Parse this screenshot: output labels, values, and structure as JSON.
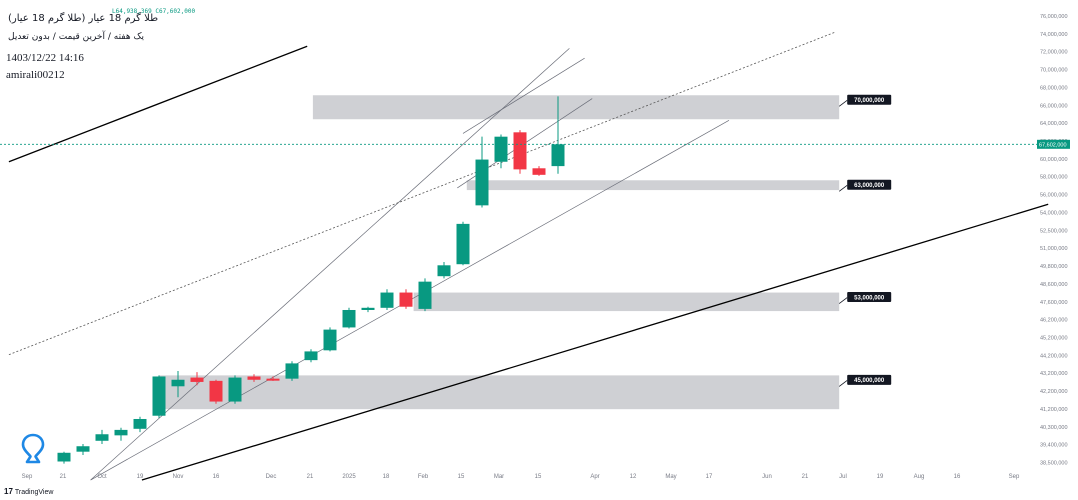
{
  "header": {
    "title": "طلا گرم 18 عیار (طلا گرم 18 عیار)",
    "ohlc": "L64,938,369 C67,602,000",
    "subtitle": "یک هفته / آخرین قیمت / بدون تعدیل",
    "datetime": "1403/12/22 14:16",
    "author": "amirali00212"
  },
  "brand": {
    "mark": "17",
    "name": "TradingView"
  },
  "icons": {
    "pin": "map-pin-icon",
    "brand": "tradingview-logo-icon"
  },
  "colors": {
    "up": "#089981",
    "down": "#f23645",
    "zone": "#c7c8cc",
    "trendline": "#000000",
    "dotted_line": "#555555",
    "last_price": "#089981",
    "axis_text": "#787b86"
  },
  "chart_data": {
    "type": "candlestick",
    "title": "طلا گرم 18 عیار (طلا گرم 18 عیار)",
    "timeframe": "1W",
    "x_tick_labels": [
      "Sep",
      "21",
      "Oct",
      "19",
      "Nov",
      "16",
      "Dec",
      "21",
      "2025",
      "18",
      "Feb",
      "15",
      "Mar",
      "15",
      "Apr",
      "12",
      "May",
      "17",
      "Jun",
      "21",
      "Jul",
      "19",
      "Aug",
      "16",
      "Sep"
    ],
    "y_tick_labels": [
      "76,000,000",
      "74,000,000",
      "72,000,000",
      "70,000,000",
      "68,000,000",
      "66,000,000",
      "64,000,000",
      "62,000,000",
      "60,000,000",
      "58,000,000",
      "56,000,000",
      "54,000,000",
      "52,500,000",
      "51,000,000",
      "49,800,000",
      "48,600,000",
      "47,600,000",
      "46,200,000",
      "45,200,000",
      "44,200,000",
      "43,200,000",
      "42,200,000",
      "41,200,000",
      "40,300,000",
      "39,400,000",
      "38,500,000"
    ],
    "candles": [
      {
        "o": 38.5,
        "h": 39.4,
        "l": 38.3,
        "c": 39.3
      },
      {
        "o": 39.4,
        "h": 40.1,
        "l": 39.1,
        "c": 39.9
      },
      {
        "o": 40.4,
        "h": 41.4,
        "l": 40.1,
        "c": 41.0
      },
      {
        "o": 40.9,
        "h": 41.6,
        "l": 40.4,
        "c": 41.4
      },
      {
        "o": 41.5,
        "h": 42.6,
        "l": 41.2,
        "c": 42.4
      },
      {
        "o": 42.7,
        "h": 46.4,
        "l": 42.5,
        "c": 46.3
      },
      {
        "o": 45.4,
        "h": 46.8,
        "l": 44.4,
        "c": 46.0
      },
      {
        "o": 46.2,
        "h": 46.7,
        "l": 45.5,
        "c": 45.8
      },
      {
        "o": 45.9,
        "h": 46.0,
        "l": 43.8,
        "c": 44.0
      },
      {
        "o": 44.0,
        "h": 46.4,
        "l": 43.8,
        "c": 46.2
      },
      {
        "o": 46.3,
        "h": 46.5,
        "l": 45.8,
        "c": 46.0
      },
      {
        "o": 46.1,
        "h": 46.3,
        "l": 45.9,
        "c": 46.0
      },
      {
        "o": 46.1,
        "h": 47.7,
        "l": 45.9,
        "c": 47.5
      },
      {
        "o": 47.8,
        "h": 48.8,
        "l": 47.6,
        "c": 48.6
      },
      {
        "o": 48.7,
        "h": 50.8,
        "l": 48.6,
        "c": 50.6
      },
      {
        "o": 50.8,
        "h": 52.6,
        "l": 50.7,
        "c": 52.4
      },
      {
        "o": 52.4,
        "h": 52.7,
        "l": 52.2,
        "c": 52.6
      },
      {
        "o": 52.6,
        "h": 54.3,
        "l": 52.4,
        "c": 54.0
      },
      {
        "o": 54.0,
        "h": 54.3,
        "l": 52.5,
        "c": 52.7
      },
      {
        "o": 52.5,
        "h": 55.3,
        "l": 52.3,
        "c": 55.0
      },
      {
        "o": 55.5,
        "h": 56.8,
        "l": 55.3,
        "c": 56.5
      },
      {
        "o": 56.6,
        "h": 60.5,
        "l": 56.5,
        "c": 60.3
      },
      {
        "o": 62.0,
        "h": 68.3,
        "l": 61.8,
        "c": 66.2
      },
      {
        "o": 66.0,
        "h": 68.5,
        "l": 65.4,
        "c": 68.3
      },
      {
        "o": 68.7,
        "h": 68.9,
        "l": 64.9,
        "c": 65.3
      },
      {
        "o": 65.4,
        "h": 65.6,
        "l": 64.7,
        "c": 64.8
      },
      {
        "o": 65.6,
        "h": 72.0,
        "l": 64.9,
        "c": 67.6
      }
    ],
    "price_unit": "million",
    "last_price_label": "67,602,000",
    "zones": [
      {
        "label": "70,000,000",
        "y_top": 72.1,
        "y_bottom": 69.9,
        "x_start": 13.1,
        "x_end": 40.8
      },
      {
        "label": "63,000,000",
        "y_top": 64.3,
        "y_bottom": 63.4,
        "x_start": 21.2,
        "x_end": 40.8
      },
      {
        "label": "53,000,000",
        "y_top": 54.0,
        "y_bottom": 52.3,
        "x_start": 18.4,
        "x_end": 40.8
      },
      {
        "label": "45,000,000",
        "y_top": 46.4,
        "y_bottom": 43.3,
        "x_start": 5.0,
        "x_end": 40.8
      }
    ],
    "trendlines": [
      {
        "style": "solid",
        "x1": -2.9,
        "y1": 66.0,
        "x2": 12.8,
        "y2": 76.6
      },
      {
        "style": "solid",
        "x1": 4.1,
        "y1": 36.8,
        "x2": 51.8,
        "y2": 62.1
      },
      {
        "style": "thin",
        "x1": 1.4,
        "y1": 36.8,
        "x2": 26.6,
        "y2": 76.4
      },
      {
        "style": "thin",
        "x1": 21.0,
        "y1": 68.6,
        "x2": 27.4,
        "y2": 75.5
      },
      {
        "style": "thin",
        "x1": 20.7,
        "y1": 63.6,
        "x2": 27.8,
        "y2": 71.8
      },
      {
        "style": "thin",
        "x1": 1.4,
        "y1": 36.8,
        "x2": 35.0,
        "y2": 69.8
      },
      {
        "style": "dotted",
        "x1": -2.9,
        "y1": 48.3,
        "x2": 40.6,
        "y2": 77.9
      }
    ]
  }
}
